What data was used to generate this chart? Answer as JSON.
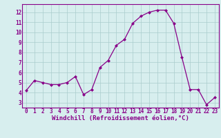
{
  "x": [
    0,
    1,
    2,
    3,
    4,
    5,
    6,
    7,
    8,
    9,
    10,
    11,
    12,
    13,
    14,
    15,
    16,
    17,
    18,
    19,
    20,
    21,
    22,
    23
  ],
  "y": [
    4.2,
    5.2,
    5.0,
    4.8,
    4.8,
    5.0,
    5.6,
    3.8,
    4.3,
    6.5,
    7.2,
    8.7,
    9.3,
    10.9,
    11.6,
    12.0,
    12.2,
    12.2,
    10.9,
    7.5,
    4.3,
    4.3,
    2.8,
    3.5
  ],
  "line_color": "#880088",
  "marker": "D",
  "marker_size": 2.0,
  "bg_color": "#d7eeee",
  "grid_color": "#aacccc",
  "xlabel": "Windchill (Refroidissement éolien,°C)",
  "xlabel_color": "#880088",
  "tick_color": "#880088",
  "ylim": [
    2.5,
    12.8
  ],
  "yticks": [
    3,
    4,
    5,
    6,
    7,
    8,
    9,
    10,
    11,
    12
  ],
  "xlim": [
    -0.5,
    23.5
  ],
  "xticks": [
    0,
    1,
    2,
    3,
    4,
    5,
    6,
    7,
    8,
    9,
    10,
    11,
    12,
    13,
    14,
    15,
    16,
    17,
    18,
    19,
    20,
    21,
    22,
    23
  ],
  "spine_color": "#880088",
  "tick_fontsize": 5.5,
  "xlabel_fontsize": 6.5,
  "lw": 0.9
}
